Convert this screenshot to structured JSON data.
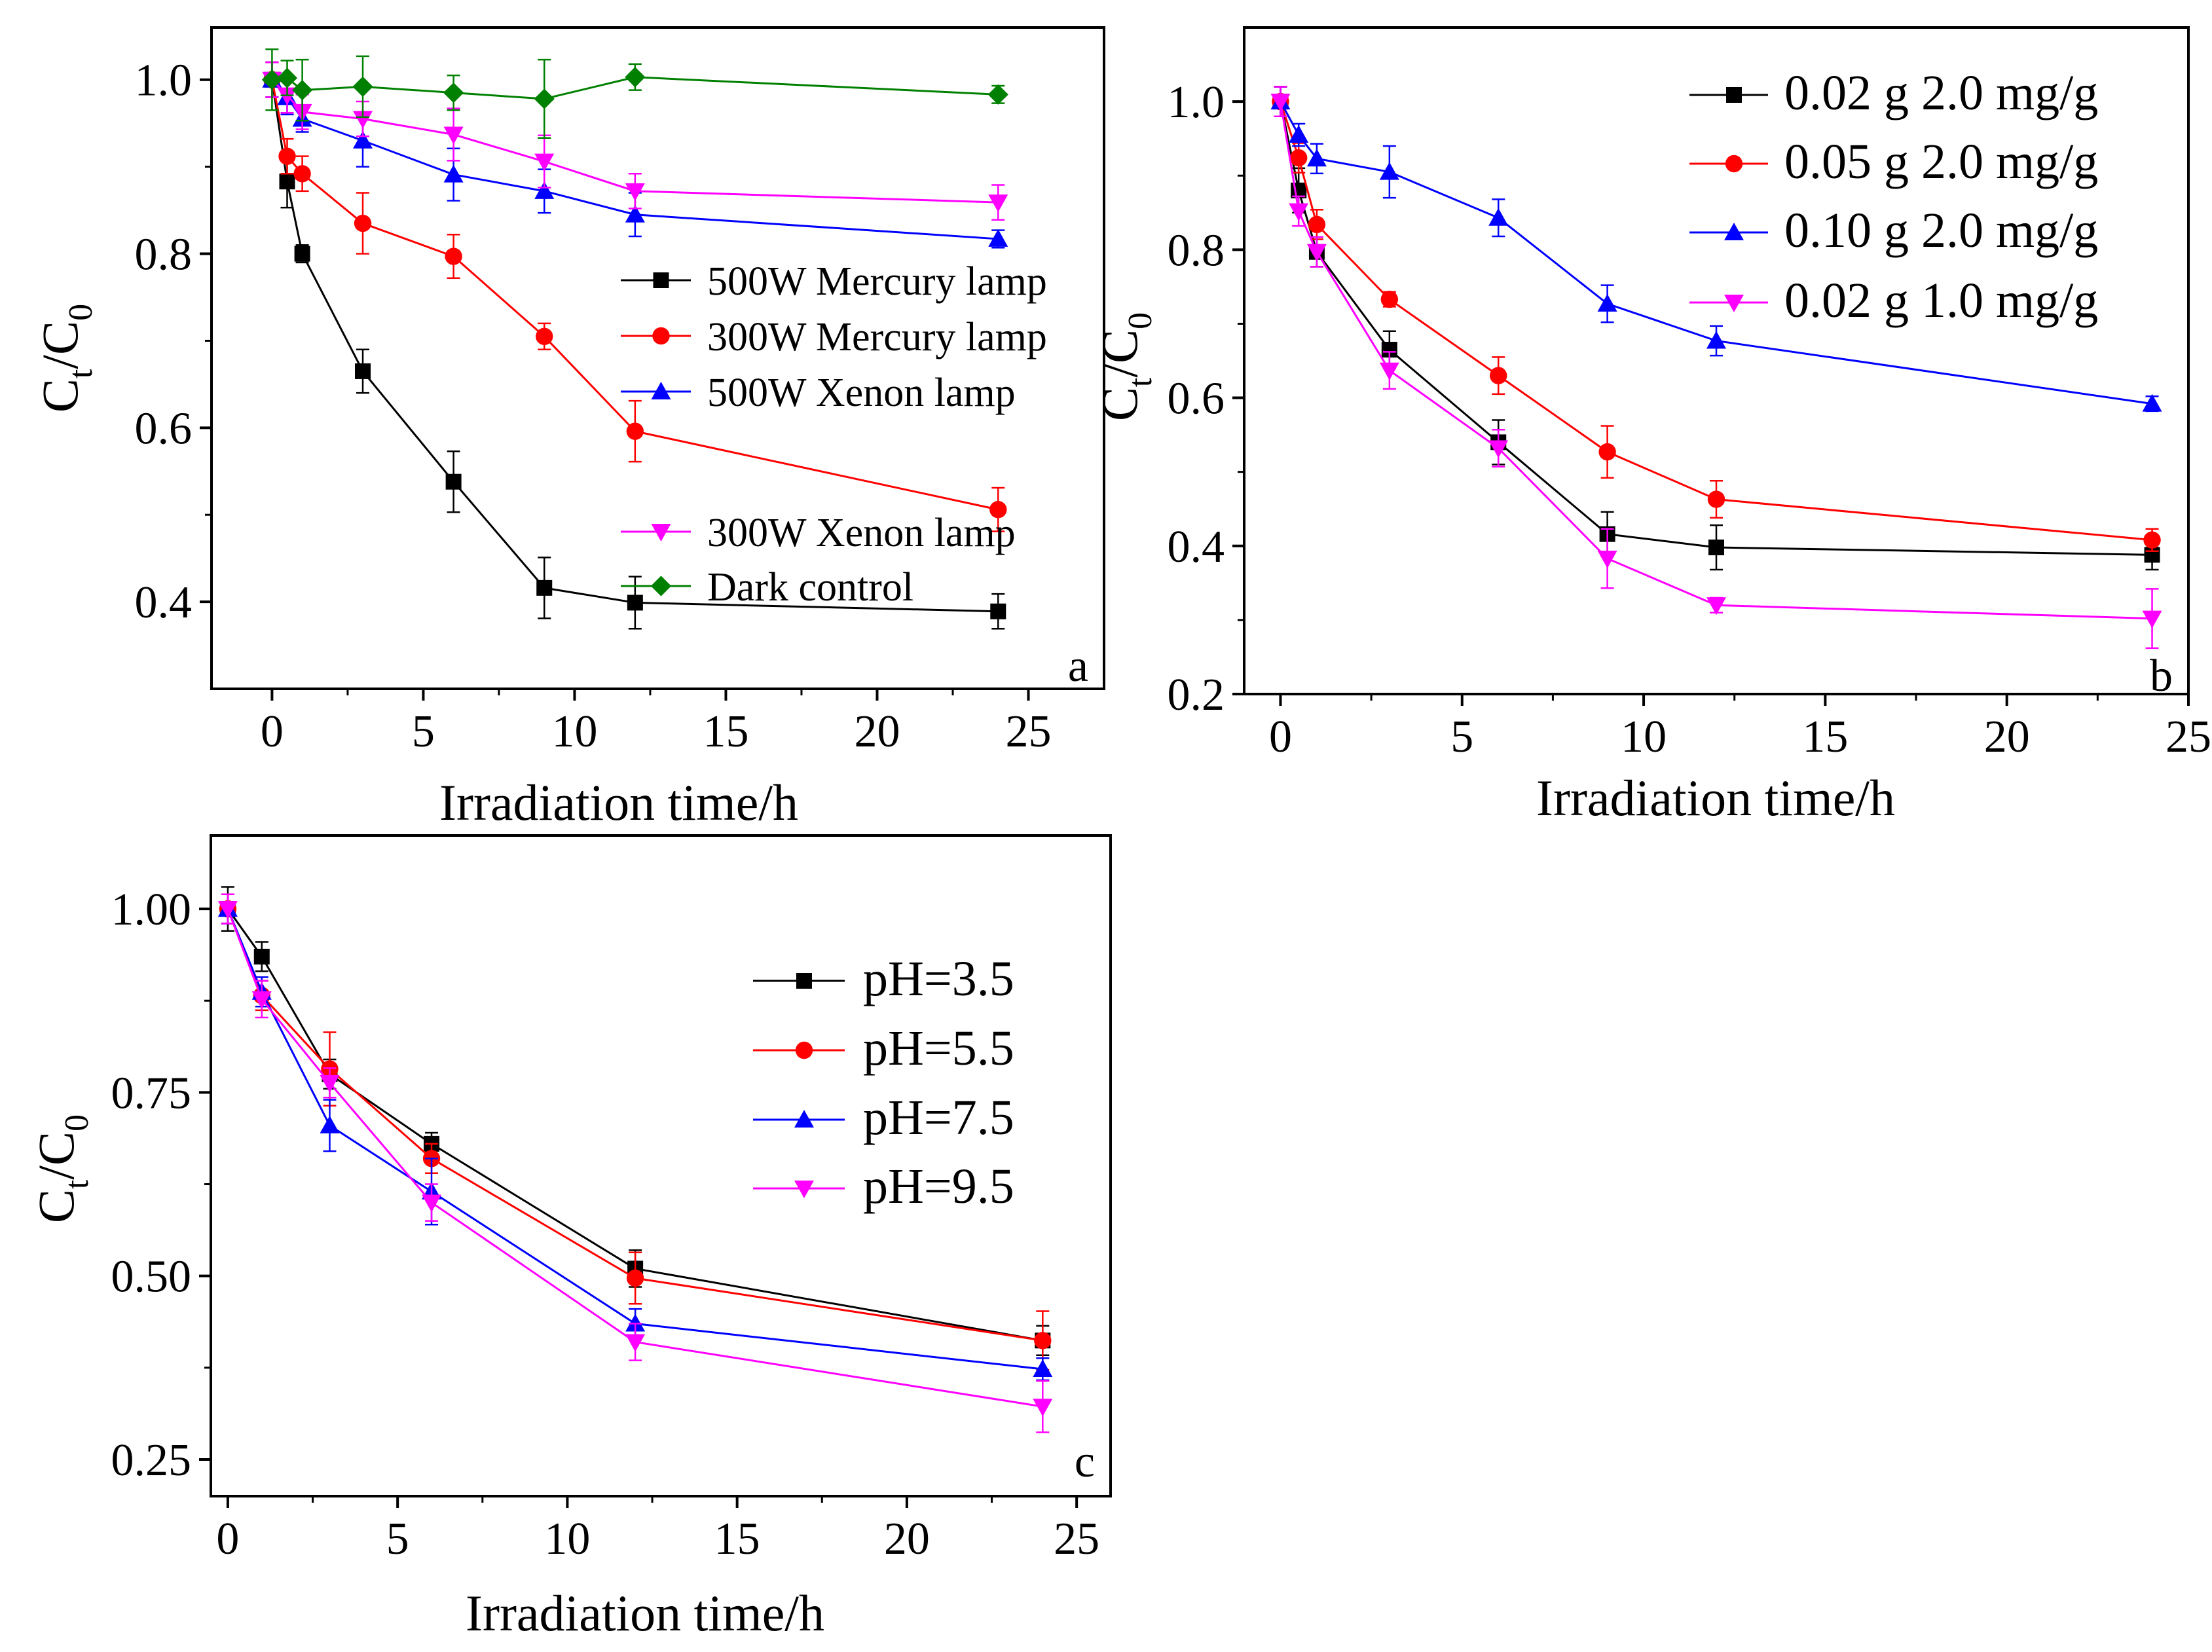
{
  "chart_data": [
    {
      "type": "line",
      "panel_label": "a",
      "xlabel": "Irradiation time/h",
      "ylabel_main": "C",
      "ylabel_sub1": "t",
      "ylabel_mid": "/C",
      "ylabel_sub2": "0",
      "xlim": [
        -2,
        27.5
      ],
      "ylim": [
        0.3,
        1.06
      ],
      "xticks": [
        0,
        5,
        10,
        15,
        20,
        25
      ],
      "yticks": [
        0.4,
        0.6,
        0.8,
        1.0
      ],
      "ytick_labels": [
        "0.4",
        "0.6",
        "0.8",
        "1.0"
      ],
      "legend_position": "right",
      "series": [
        {
          "name": "500W Mercury lamp",
          "color": "#000000",
          "marker": "square",
          "x": [
            0,
            0.5,
            1,
            3,
            6,
            9,
            12,
            24
          ],
          "y": [
            1.0,
            0.883,
            0.8,
            0.665,
            0.538,
            0.416,
            0.399,
            0.389
          ],
          "err": [
            0.02,
            0.03,
            0.01,
            0.025,
            0.035,
            0.035,
            0.03,
            0.02
          ]
        },
        {
          "name": "300W Mercury lamp",
          "color": "#ff0000",
          "marker": "circle",
          "x": [
            0,
            0.5,
            1,
            3,
            6,
            9,
            12,
            24
          ],
          "y": [
            1.0,
            0.912,
            0.892,
            0.835,
            0.797,
            0.705,
            0.596,
            0.506
          ],
          "err": [
            0.02,
            0.02,
            0.02,
            0.035,
            0.025,
            0.015,
            0.035,
            0.025
          ]
        },
        {
          "name": "500W Xenon lamp",
          "color": "#0000ff",
          "marker": "triangle-up",
          "x": [
            0,
            0.5,
            1,
            3,
            6,
            9,
            12,
            24
          ],
          "y": [
            1.0,
            0.98,
            0.955,
            0.93,
            0.891,
            0.872,
            0.845,
            0.817
          ],
          "err": [
            0.02,
            0.02,
            0.015,
            0.03,
            0.03,
            0.025,
            0.025,
            0.01
          ]
        },
        {
          "name": "300W Xenon lamp",
          "color": "#ff00ff",
          "marker": "triangle-down",
          "x": [
            0,
            0.5,
            1,
            3,
            6,
            9,
            12,
            24
          ],
          "y": [
            1.0,
            0.982,
            0.963,
            0.955,
            0.937,
            0.906,
            0.872,
            0.859
          ],
          "err": [
            0.02,
            0.02,
            0.02,
            0.02,
            0.03,
            0.03,
            0.02,
            0.02
          ]
        },
        {
          "name": "Dark control",
          "color": "#008000",
          "marker": "diamond",
          "x": [
            0,
            0.5,
            1,
            3,
            6,
            9,
            12,
            24
          ],
          "y": [
            1.0,
            1.002,
            0.988,
            0.992,
            0.985,
            0.978,
            1.003,
            0.983
          ],
          "err": [
            0.035,
            0.02,
            0.035,
            0.035,
            0.02,
            0.045,
            0.015,
            0.01
          ]
        }
      ]
    },
    {
      "type": "line",
      "panel_label": "b",
      "xlabel": "Irradiation time/h",
      "ylabel_main": "C",
      "ylabel_sub1": "t",
      "ylabel_mid": "/C",
      "ylabel_sub2": "0",
      "xlim": [
        -1,
        25
      ],
      "ylim": [
        0.2,
        1.1
      ],
      "xticks": [
        0,
        5,
        10,
        15,
        20,
        25
      ],
      "yticks": [
        0.2,
        0.4,
        0.6,
        0.8,
        1.0
      ],
      "ytick_labels": [
        "0.2",
        "0.4",
        "0.6",
        "0.8",
        "1.0"
      ],
      "legend_position": "top-right",
      "series": [
        {
          "name": "0.02 g 2.0 mg/g",
          "color": "#000000",
          "marker": "square",
          "x": [
            0,
            0.5,
            1,
            3,
            6,
            9,
            12,
            24
          ],
          "y": [
            1.0,
            0.88,
            0.797,
            0.665,
            0.54,
            0.416,
            0.398,
            0.388
          ],
          "err": [
            0.02,
            0.03,
            0.02,
            0.025,
            0.03,
            0.03,
            0.03,
            0.02
          ]
        },
        {
          "name": "0.05 g 2.0 mg/g",
          "color": "#ff0000",
          "marker": "circle",
          "x": [
            0,
            0.5,
            1,
            3,
            6,
            9,
            12,
            24
          ],
          "y": [
            1.0,
            0.924,
            0.834,
            0.733,
            0.63,
            0.527,
            0.463,
            0.408
          ],
          "err": [
            0.02,
            0.02,
            0.02,
            0.01,
            0.025,
            0.035,
            0.025,
            0.015
          ]
        },
        {
          "name": "0.10 g 2.0 mg/g",
          "color": "#0000ff",
          "marker": "triangle-up",
          "x": [
            0,
            0.5,
            1,
            3,
            6,
            9,
            12,
            24
          ],
          "y": [
            1.0,
            0.955,
            0.923,
            0.905,
            0.843,
            0.727,
            0.677,
            0.592
          ],
          "err": [
            0.02,
            0.015,
            0.02,
            0.035,
            0.025,
            0.025,
            0.02,
            0.01
          ]
        },
        {
          "name": "0.02 g 1.0 mg/g",
          "color": "#ff00ff",
          "marker": "triangle-down",
          "x": [
            0,
            0.5,
            1,
            3,
            6,
            9,
            12,
            24
          ],
          "y": [
            1.0,
            0.852,
            0.797,
            0.637,
            0.532,
            0.383,
            0.32,
            0.302
          ],
          "err": [
            0.02,
            0.02,
            0.02,
            0.025,
            0.025,
            0.04,
            0.01,
            0.04
          ]
        }
      ]
    },
    {
      "type": "line",
      "panel_label": "c",
      "xlabel": "Irradiation time/h",
      "ylabel_main": "C",
      "ylabel_sub1": "t",
      "ylabel_mid": "/C",
      "ylabel_sub2": "0",
      "xlim": [
        -0.5,
        26
      ],
      "ylim": [
        0.2,
        1.1
      ],
      "xticks": [
        0,
        5,
        10,
        15,
        20,
        25
      ],
      "yticks": [
        0.25,
        0.5,
        0.75,
        1.0
      ],
      "ytick_labels": [
        "0.25",
        "0.50",
        "0.75",
        "1.00"
      ],
      "legend_position": "right",
      "series": [
        {
          "name": "pH=3.5",
          "color": "#000000",
          "marker": "square",
          "x": [
            0,
            1,
            3,
            6,
            12,
            24
          ],
          "y": [
            1.0,
            0.935,
            0.775,
            0.68,
            0.51,
            0.412
          ],
          "err": [
            0.03,
            0.02,
            0.02,
            0.015,
            0.025,
            0.02
          ]
        },
        {
          "name": "pH=5.5",
          "color": "#ff0000",
          "marker": "circle",
          "x": [
            0,
            1,
            3,
            6,
            12,
            24
          ],
          "y": [
            1.0,
            0.882,
            0.782,
            0.66,
            0.497,
            0.412
          ],
          "err": [
            0.02,
            0.02,
            0.05,
            0.02,
            0.035,
            0.04
          ]
        },
        {
          "name": "pH=7.5",
          "color": "#0000ff",
          "marker": "triangle-up",
          "x": [
            0,
            1,
            3,
            6,
            12,
            24
          ],
          "y": [
            1.0,
            0.887,
            0.705,
            0.615,
            0.435,
            0.373
          ],
          "err": [
            0.02,
            0.02,
            0.035,
            0.045,
            0.02,
            0.015
          ]
        },
        {
          "name": "pH=9.5",
          "color": "#ff00ff",
          "marker": "triangle-down",
          "x": [
            0,
            1,
            3,
            6,
            12,
            24
          ],
          "y": [
            1.0,
            0.877,
            0.763,
            0.6,
            0.41,
            0.322
          ],
          "err": [
            0.02,
            0.025,
            0.02,
            0.025,
            0.025,
            0.035
          ]
        }
      ]
    }
  ]
}
